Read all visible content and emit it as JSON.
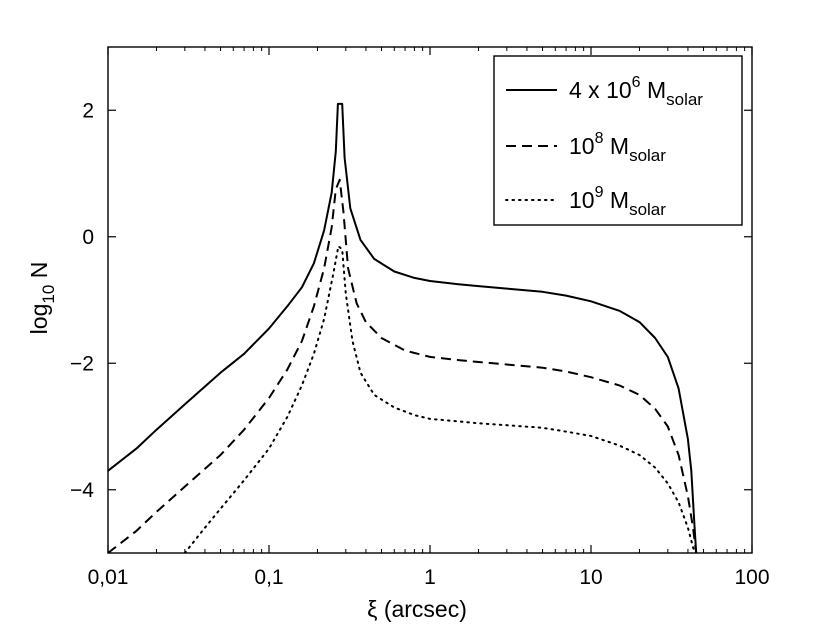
{
  "chart_data": {
    "type": "line",
    "x_scale": "log",
    "xlabel": "ξ (arcsec)",
    "ylabel": {
      "base": "log",
      "sub": "10",
      "rest": " N"
    },
    "xlim": [
      0.01,
      100
    ],
    "ylim": [
      -5,
      3
    ],
    "x_ticks": [
      {
        "value": 0.01,
        "label": "0,01"
      },
      {
        "value": 0.1,
        "label": "0,1"
      },
      {
        "value": 1,
        "label": "1"
      },
      {
        "value": 10,
        "label": "10"
      },
      {
        "value": 100,
        "label": "100"
      }
    ],
    "y_ticks": [
      {
        "value": 2,
        "label": "2"
      },
      {
        "value": 0,
        "label": "0"
      },
      {
        "value": -2,
        "label": "−2"
      },
      {
        "value": -4,
        "label": "−4"
      }
    ],
    "legend_position": "top-right",
    "series": [
      {
        "name": "4 x 10^6 M_solar",
        "legend": {
          "main": "4 x 10",
          "sup": "6",
          "mid": " M",
          "sub": "solar"
        },
        "style": "solid",
        "points": [
          [
            0.01,
            -3.7
          ],
          [
            0.015,
            -3.35
          ],
          [
            0.02,
            -3.05
          ],
          [
            0.03,
            -2.65
          ],
          [
            0.05,
            -2.15
          ],
          [
            0.07,
            -1.85
          ],
          [
            0.1,
            -1.45
          ],
          [
            0.13,
            -1.1
          ],
          [
            0.16,
            -0.8
          ],
          [
            0.19,
            -0.42
          ],
          [
            0.22,
            0.1
          ],
          [
            0.245,
            0.7
          ],
          [
            0.26,
            1.35
          ],
          [
            0.268,
            2.1
          ],
          [
            0.285,
            2.1
          ],
          [
            0.295,
            1.25
          ],
          [
            0.32,
            0.45
          ],
          [
            0.37,
            -0.05
          ],
          [
            0.45,
            -0.35
          ],
          [
            0.6,
            -0.55
          ],
          [
            0.8,
            -0.65
          ],
          [
            1.0,
            -0.7
          ],
          [
            1.5,
            -0.75
          ],
          [
            2,
            -0.78
          ],
          [
            3,
            -0.82
          ],
          [
            5,
            -0.87
          ],
          [
            7,
            -0.93
          ],
          [
            10,
            -1.02
          ],
          [
            15,
            -1.17
          ],
          [
            20,
            -1.35
          ],
          [
            25,
            -1.6
          ],
          [
            30,
            -1.9
          ],
          [
            35,
            -2.4
          ],
          [
            40,
            -3.2
          ],
          [
            42,
            -3.7
          ],
          [
            44,
            -4.6
          ],
          [
            45,
            -5.0
          ]
        ]
      },
      {
        "name": "10^8 M_solar",
        "legend": {
          "main": "10",
          "sup": "8",
          "mid": " M",
          "sub": "solar"
        },
        "style": "dashed",
        "points": [
          [
            0.01,
            -5.0
          ],
          [
            0.015,
            -4.65
          ],
          [
            0.02,
            -4.35
          ],
          [
            0.03,
            -3.95
          ],
          [
            0.05,
            -3.45
          ],
          [
            0.07,
            -3.05
          ],
          [
            0.1,
            -2.55
          ],
          [
            0.13,
            -2.1
          ],
          [
            0.16,
            -1.65
          ],
          [
            0.19,
            -1.1
          ],
          [
            0.22,
            -0.5
          ],
          [
            0.245,
            0.15
          ],
          [
            0.26,
            0.75
          ],
          [
            0.275,
            0.9
          ],
          [
            0.29,
            0.4
          ],
          [
            0.31,
            -0.5
          ],
          [
            0.35,
            -1.05
          ],
          [
            0.4,
            -1.35
          ],
          [
            0.5,
            -1.6
          ],
          [
            0.7,
            -1.8
          ],
          [
            1.0,
            -1.9
          ],
          [
            1.5,
            -1.95
          ],
          [
            2,
            -1.98
          ],
          [
            3,
            -2.02
          ],
          [
            5,
            -2.07
          ],
          [
            7,
            -2.13
          ],
          [
            10,
            -2.22
          ],
          [
            15,
            -2.35
          ],
          [
            20,
            -2.5
          ],
          [
            25,
            -2.72
          ],
          [
            30,
            -3.0
          ],
          [
            35,
            -3.45
          ],
          [
            40,
            -4.1
          ],
          [
            43,
            -4.6
          ],
          [
            45,
            -5.0
          ]
        ]
      },
      {
        "name": "10^9 M_solar",
        "legend": {
          "main": "10",
          "sup": "9",
          "mid": " M",
          "sub": "solar"
        },
        "style": "dotted",
        "points": [
          [
            0.03,
            -5.0
          ],
          [
            0.04,
            -4.6
          ],
          [
            0.05,
            -4.3
          ],
          [
            0.07,
            -3.85
          ],
          [
            0.1,
            -3.35
          ],
          [
            0.13,
            -2.85
          ],
          [
            0.16,
            -2.35
          ],
          [
            0.19,
            -1.85
          ],
          [
            0.22,
            -1.3
          ],
          [
            0.25,
            -0.6
          ],
          [
            0.27,
            -0.15
          ],
          [
            0.285,
            -0.2
          ],
          [
            0.3,
            -0.9
          ],
          [
            0.33,
            -1.65
          ],
          [
            0.37,
            -2.15
          ],
          [
            0.45,
            -2.5
          ],
          [
            0.6,
            -2.7
          ],
          [
            0.8,
            -2.82
          ],
          [
            1.0,
            -2.88
          ],
          [
            1.5,
            -2.92
          ],
          [
            2,
            -2.95
          ],
          [
            3,
            -2.98
          ],
          [
            5,
            -3.02
          ],
          [
            7,
            -3.08
          ],
          [
            10,
            -3.15
          ],
          [
            15,
            -3.3
          ],
          [
            20,
            -3.45
          ],
          [
            25,
            -3.65
          ],
          [
            30,
            -3.9
          ],
          [
            35,
            -4.2
          ],
          [
            40,
            -4.6
          ],
          [
            44,
            -5.0
          ]
        ]
      }
    ]
  }
}
